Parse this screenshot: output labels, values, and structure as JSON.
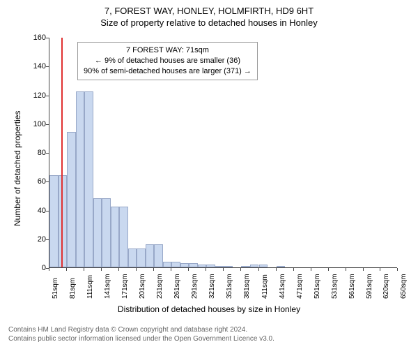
{
  "title": {
    "line1": "7, FOREST WAY, HONLEY, HOLMFIRTH, HD9 6HT",
    "line2": "Size of property relative to detached houses in Honley"
  },
  "chart": {
    "type": "histogram",
    "y_label": "Number of detached properties",
    "x_label": "Distribution of detached houses by size in Honley",
    "ylim": [
      0,
      160
    ],
    "ytick_step": 20,
    "yticks": [
      0,
      20,
      40,
      60,
      80,
      100,
      120,
      140,
      160
    ],
    "xlim": [
      51,
      650
    ],
    "x_categories": [
      "51sqm",
      "81sqm",
      "111sqm",
      "141sqm",
      "171sqm",
      "201sqm",
      "231sqm",
      "261sqm",
      "291sqm",
      "321sqm",
      "351sqm",
      "381sqm",
      "411sqm",
      "441sqm",
      "471sqm",
      "501sqm",
      "531sqm",
      "561sqm",
      "591sqm",
      "620sqm",
      "650sqm"
    ],
    "bar_fill": "#c9d8ef",
    "bar_border": "#98a8c8",
    "bars": [
      {
        "x": 51,
        "w": 15,
        "h": 64
      },
      {
        "x": 66,
        "w": 15,
        "h": 64
      },
      {
        "x": 81,
        "w": 15,
        "h": 94
      },
      {
        "x": 96,
        "w": 15,
        "h": 122
      },
      {
        "x": 111,
        "w": 15,
        "h": 122
      },
      {
        "x": 126,
        "w": 15,
        "h": 48
      },
      {
        "x": 141,
        "w": 15,
        "h": 48
      },
      {
        "x": 156,
        "w": 15,
        "h": 42
      },
      {
        "x": 171,
        "w": 15,
        "h": 42
      },
      {
        "x": 186,
        "w": 15,
        "h": 13
      },
      {
        "x": 201,
        "w": 15,
        "h": 13
      },
      {
        "x": 216,
        "w": 15,
        "h": 16
      },
      {
        "x": 231,
        "w": 15,
        "h": 16
      },
      {
        "x": 246,
        "w": 15,
        "h": 4
      },
      {
        "x": 261,
        "w": 15,
        "h": 4
      },
      {
        "x": 276,
        "w": 15,
        "h": 3
      },
      {
        "x": 291,
        "w": 15,
        "h": 3
      },
      {
        "x": 306,
        "w": 15,
        "h": 2
      },
      {
        "x": 321,
        "w": 15,
        "h": 2
      },
      {
        "x": 336,
        "w": 15,
        "h": 1
      },
      {
        "x": 351,
        "w": 15,
        "h": 1
      },
      {
        "x": 381,
        "w": 15,
        "h": 1
      },
      {
        "x": 396,
        "w": 15,
        "h": 2
      },
      {
        "x": 411,
        "w": 15,
        "h": 2
      },
      {
        "x": 441,
        "w": 15,
        "h": 1
      }
    ],
    "reference_line": {
      "x": 71,
      "color": "#e03030"
    },
    "annotation": {
      "lines": [
        "7 FOREST WAY: 71sqm",
        "← 9% of detached houses are smaller (36)",
        "90% of semi-detached houses are larger (371) →"
      ]
    },
    "background_color": "#ffffff",
    "axis_color": "#444444",
    "tick_fontsize": 11,
    "label_fontsize": 12,
    "title_fontsize": 13
  },
  "footer": {
    "line1": "Contains HM Land Registry data © Crown copyright and database right 2024.",
    "line2": "Contains public sector information licensed under the Open Government Licence v3.0."
  }
}
